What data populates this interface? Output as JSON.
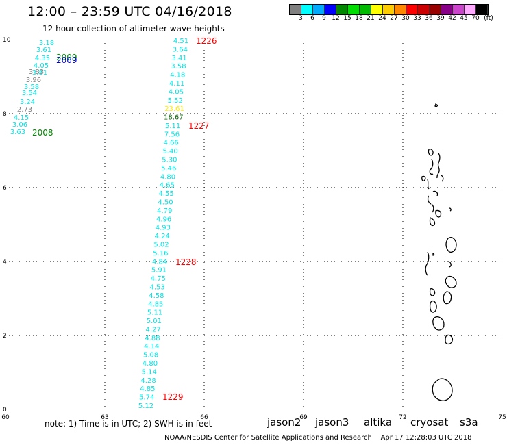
{
  "header": {
    "title": "12:00 – 23:59 UTC 04/16/2018",
    "subtitle": "12 hour collection of altimeter wave heights"
  },
  "colorbar": {
    "colors": [
      "#808080",
      "#00ffff",
      "#00aaff",
      "#0000ff",
      "#008800",
      "#00dd00",
      "#00bb00",
      "#ffff00",
      "#ffcc00",
      "#ff8800",
      "#ff0000",
      "#cc0000",
      "#990000",
      "#880088",
      "#cc44cc",
      "#ffaaff",
      "#000000"
    ],
    "labels": [
      "3",
      "6",
      "9",
      "12",
      "15",
      "18",
      "21",
      "24",
      "27",
      "30",
      "33",
      "36",
      "39",
      "42",
      "45",
      "70",
      "(ft)"
    ]
  },
  "axes": {
    "x_ticks": [
      "60",
      "63",
      "66",
      "69",
      "72",
      "75"
    ],
    "y_ticks": [
      "0",
      "2",
      "4",
      "6",
      "8",
      "10"
    ]
  },
  "passes": {
    "track_1226": [
      {
        "v": "4.51",
        "c": "#00e5e5"
      },
      {
        "v": "3.64",
        "c": "#00e5e5"
      },
      {
        "v": "3.41",
        "c": "#00e5e5"
      },
      {
        "v": "3.58",
        "c": "#00e5e5"
      },
      {
        "v": "4.18",
        "c": "#00e5e5"
      },
      {
        "v": "4.11",
        "c": "#00e5e5"
      },
      {
        "v": "4.05",
        "c": "#00e5e5"
      },
      {
        "v": "5.52",
        "c": "#00e5e5"
      },
      {
        "v": "23.61",
        "c": "#ffee00"
      },
      {
        "v": "18.67",
        "c": "#006400"
      },
      {
        "v": "5.11",
        "c": "#00e5e5"
      },
      {
        "v": "7.56",
        "c": "#00e5e5"
      },
      {
        "v": "4.66",
        "c": "#00e5e5"
      },
      {
        "v": "5.40",
        "c": "#00e5e5"
      },
      {
        "v": "5.30",
        "c": "#00e5e5"
      },
      {
        "v": "5.46",
        "c": "#00e5e5"
      },
      {
        "v": "4.80",
        "c": "#00e5e5"
      },
      {
        "v": "4.65",
        "c": "#00e5e5"
      },
      {
        "v": "4.55",
        "c": "#00e5e5"
      },
      {
        "v": "4.50",
        "c": "#00e5e5"
      },
      {
        "v": "4.79",
        "c": "#00e5e5"
      },
      {
        "v": "4.96",
        "c": "#00e5e5"
      },
      {
        "v": "4.93",
        "c": "#00e5e5"
      },
      {
        "v": "4.24",
        "c": "#00e5e5"
      },
      {
        "v": "5.02",
        "c": "#00e5e5"
      },
      {
        "v": "5.16",
        "c": "#00e5e5"
      },
      {
        "v": "4.84",
        "c": "#00e5e5"
      },
      {
        "v": "5.91",
        "c": "#00e5e5"
      },
      {
        "v": "4.75",
        "c": "#00e5e5"
      },
      {
        "v": "4.53",
        "c": "#00e5e5"
      },
      {
        "v": "4.58",
        "c": "#00e5e5"
      },
      {
        "v": "4.85",
        "c": "#00e5e5"
      },
      {
        "v": "5.11",
        "c": "#00e5e5"
      },
      {
        "v": "5.01",
        "c": "#00e5e5"
      },
      {
        "v": "4.27",
        "c": "#00e5e5"
      },
      {
        "v": "4.88",
        "c": "#00e5e5"
      },
      {
        "v": "4.14",
        "c": "#00e5e5"
      },
      {
        "v": "5.08",
        "c": "#00e5e5"
      },
      {
        "v": "4.80",
        "c": "#00e5e5"
      },
      {
        "v": "5.14",
        "c": "#00e5e5"
      },
      {
        "v": "4.28",
        "c": "#00e5e5"
      },
      {
        "v": "4.85",
        "c": "#00e5e5"
      },
      {
        "v": "5.74",
        "c": "#00e5e5"
      },
      {
        "v": "5.12",
        "c": "#00e5e5"
      }
    ],
    "track_2008": [
      {
        "v": "3.18",
        "c": "#00e5e5"
      },
      {
        "v": "3.61",
        "c": "#00e5e5"
      },
      {
        "v": "4.35",
        "c": "#00e5e5"
      },
      {
        "v": "4.05",
        "c": "#00e5e5"
      },
      {
        "v": "3.81",
        "c": "#00e5e5"
      },
      {
        "v": "3.83",
        "c": "#808080"
      },
      {
        "v": "3.96",
        "c": "#808080"
      },
      {
        "v": "3.58",
        "c": "#00e5e5"
      },
      {
        "v": "3.54",
        "c": "#00e5e5"
      },
      {
        "v": "3.24",
        "c": "#00e5e5"
      },
      {
        "v": "2.73",
        "c": "#808080"
      },
      {
        "v": "4.15",
        "c": "#00e5e5"
      },
      {
        "v": "3.06",
        "c": "#00e5e5"
      },
      {
        "v": "3.63",
        "c": "#00e5e5"
      }
    ]
  },
  "time_labels": [
    {
      "t": "1226",
      "c": "#ff0000"
    },
    {
      "t": "1227",
      "c": "#ff0000"
    },
    {
      "t": "1228",
      "c": "#ff0000"
    },
    {
      "t": "1229",
      "c": "#ff0000"
    },
    {
      "t": "2009",
      "c": "#008800"
    },
    {
      "t": "2009",
      "c": "#0000cc"
    },
    {
      "t": "2008",
      "c": "#008800"
    }
  ],
  "legend": {
    "note": "note: 1) Time is in UTC; 2) SWH is in feet",
    "satellites": [
      {
        "name": "jason2",
        "color": "#0000ff"
      },
      {
        "name": "jason3",
        "color": "#00aa00"
      },
      {
        "name": "altika",
        "color": "#ff9900"
      },
      {
        "name": "cryosat",
        "color": "#ff0000"
      },
      {
        "name": "s3a",
        "color": "#aa0000"
      }
    ]
  },
  "footer": {
    "credit": "NOAA/NESDIS Center for Satellite Applications and Research    Apr 17 12:28:03 UTC 2018"
  }
}
